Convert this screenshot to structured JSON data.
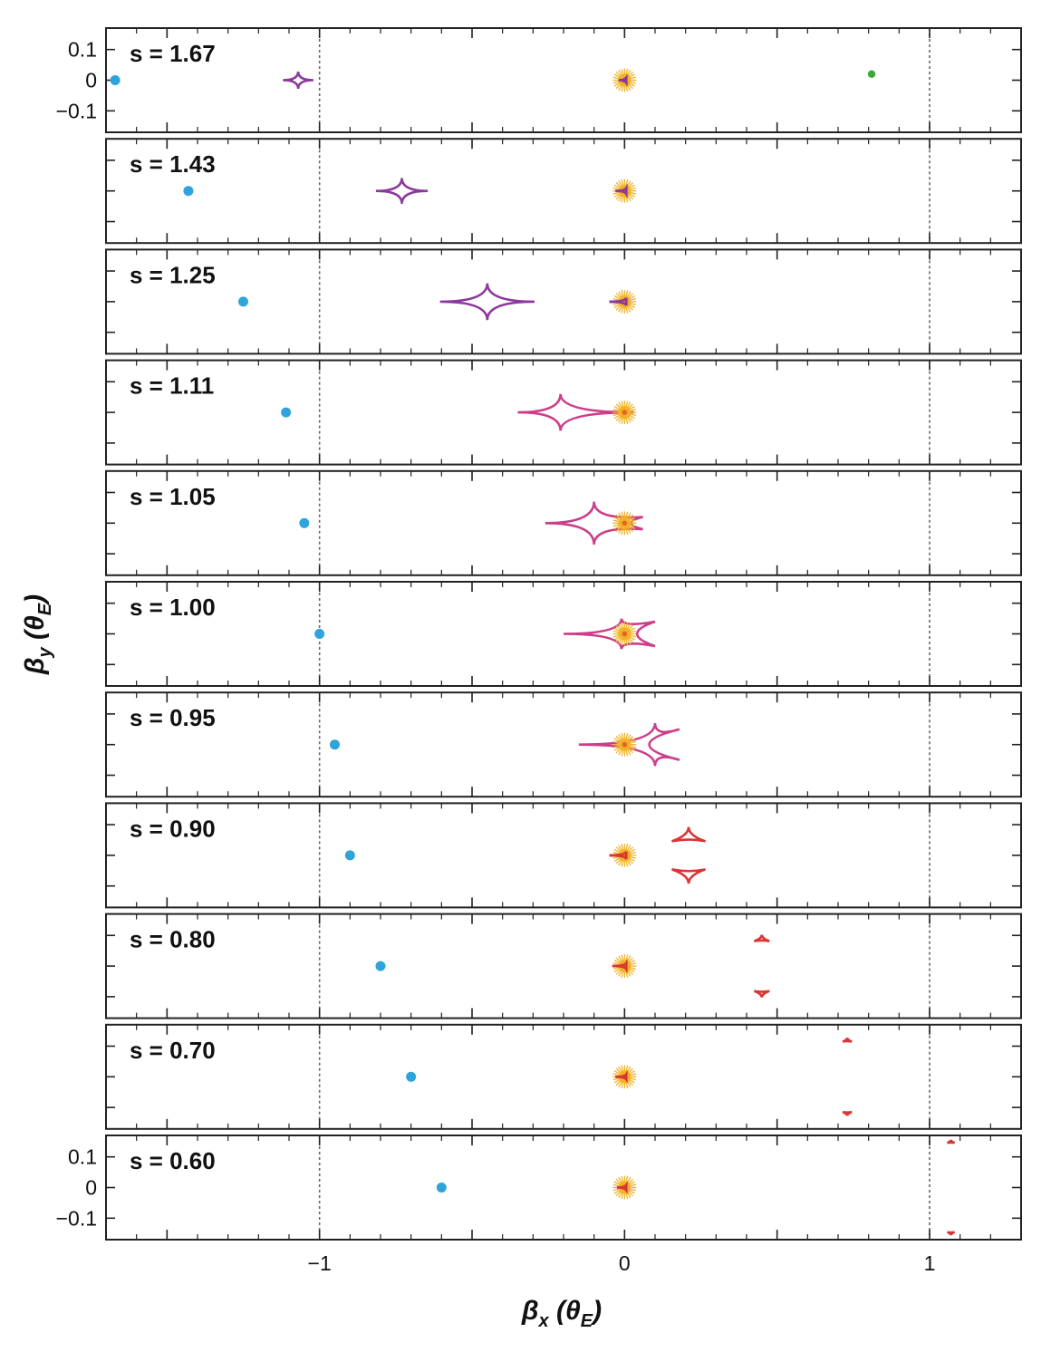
{
  "chart_data": {
    "type": "scatter",
    "xlabel": "βx (θE)",
    "ylabel": "βy (θE)",
    "xlabel_parts": {
      "symbol": "β",
      "sub": "x",
      "open": " (",
      "theta": "θ",
      "theta_sub": "E",
      "close": ")"
    },
    "ylabel_parts": {
      "symbol": "β",
      "sub": "y",
      "open": " (",
      "theta": "θ",
      "theta_sub": "E",
      "close": ")"
    },
    "xlim": [
      -1.7,
      1.3
    ],
    "ylim": [
      -0.17,
      0.17
    ],
    "xticks": [
      {
        "value": -1,
        "label": "−1"
      },
      {
        "value": 0,
        "label": "0"
      },
      {
        "value": 1,
        "label": "1"
      }
    ],
    "yticks": [
      {
        "value": 0.1,
        "label": "0.1"
      },
      {
        "value": 0,
        "label": "0"
      },
      {
        "value": -0.1,
        "label": "−0.1"
      }
    ],
    "reference_lines_x": [
      -1,
      1
    ],
    "colors": {
      "planet_close": "#8b3a9c",
      "planet_resonant": "#cc3d8a",
      "planet_wide": "#d93535",
      "source_dot": "#2ea3dc",
      "host_star": "#f0b326",
      "host_star_core": "#e8602c",
      "far_dot": "#3aa83a",
      "frame": "#222222",
      "refline": "#666666"
    },
    "panels": [
      {
        "label": "s = 1.67",
        "s": 1.67,
        "source_x": -1.67,
        "caustics": [
          {
            "kind": "central",
            "x": 0.0,
            "y": 0.0,
            "w": 0.02,
            "h": 0.008,
            "color": "#8b3a9c"
          },
          {
            "kind": "planetary",
            "x": -1.07,
            "y": 0.0,
            "w": 0.05,
            "h": 0.028,
            "color": "#8b3a9c"
          }
        ],
        "extra_dot": {
          "x": 0.81,
          "y": 0.02,
          "color": "#3aa83a"
        }
      },
      {
        "label": "s = 1.43",
        "s": 1.43,
        "source_x": -1.43,
        "caustics": [
          {
            "kind": "central",
            "x": 0.0,
            "y": 0.0,
            "w": 0.03,
            "h": 0.01,
            "color": "#8b3a9c"
          },
          {
            "kind": "planetary",
            "x": -0.73,
            "y": 0.0,
            "w": 0.085,
            "h": 0.042,
            "color": "#8b3a9c"
          }
        ]
      },
      {
        "label": "s = 1.25",
        "s": 1.25,
        "source_x": -1.25,
        "caustics": [
          {
            "kind": "central",
            "x": 0.0,
            "y": 0.0,
            "w": 0.05,
            "h": 0.012,
            "color": "#8b3a9c"
          },
          {
            "kind": "planetary",
            "x": -0.45,
            "y": 0.0,
            "w": 0.155,
            "h": 0.06,
            "color": "#8b3a9c"
          }
        ]
      },
      {
        "label": "s = 1.11",
        "s": 1.11,
        "source_x": -1.11,
        "caustics": [
          {
            "kind": "resonant",
            "xl": -0.35,
            "xtop": -0.21,
            "ytop": 0.06,
            "xr": 0.03,
            "tip_y": 0.0,
            "color": "#cc3d8a"
          }
        ]
      },
      {
        "label": "s = 1.05",
        "s": 1.05,
        "source_x": -1.05,
        "caustics": [
          {
            "kind": "resonant",
            "xl": -0.26,
            "xtop": -0.1,
            "ytop": 0.07,
            "xr": 0.06,
            "tip_y": 0.02,
            "color": "#cc3d8a"
          }
        ]
      },
      {
        "label": "s = 1.00",
        "s": 1.0,
        "source_x": -1.0,
        "caustics": [
          {
            "kind": "resonant",
            "xl": -0.2,
            "xtop": -0.01,
            "ytop": 0.05,
            "xr": 0.1,
            "tip_y": 0.04,
            "color": "#cc3d8a"
          }
        ]
      },
      {
        "label": "s = 0.95",
        "s": 0.95,
        "source_x": -0.95,
        "caustics": [
          {
            "kind": "resonant",
            "xl": -0.15,
            "xtop": 0.1,
            "ytop": 0.07,
            "xr": 0.18,
            "tip_y": 0.05,
            "color": "#cc3d8a"
          }
        ]
      },
      {
        "label": "s = 0.90",
        "s": 0.9,
        "source_x": -0.9,
        "caustics": [
          {
            "kind": "central",
            "x": 0.0,
            "y": 0.0,
            "w": 0.05,
            "h": 0.012,
            "color": "#d93535"
          },
          {
            "kind": "triangle",
            "x": 0.21,
            "y": 0.065,
            "size": 0.055,
            "dir": "down",
            "color": "#d93535"
          },
          {
            "kind": "triangle",
            "x": 0.21,
            "y": -0.065,
            "size": 0.055,
            "dir": "up",
            "color": "#d93535"
          }
        ]
      },
      {
        "label": "s = 0.80",
        "s": 0.8,
        "source_x": -0.8,
        "caustics": [
          {
            "kind": "central",
            "x": 0.0,
            "y": 0.0,
            "w": 0.04,
            "h": 0.01,
            "color": "#d93535"
          },
          {
            "kind": "triangle",
            "x": 0.45,
            "y": 0.09,
            "size": 0.025,
            "dir": "down",
            "color": "#d93535"
          },
          {
            "kind": "triangle",
            "x": 0.45,
            "y": -0.09,
            "size": 0.025,
            "dir": "up",
            "color": "#d93535"
          }
        ]
      },
      {
        "label": "s = 0.70",
        "s": 0.7,
        "source_x": -0.7,
        "caustics": [
          {
            "kind": "central",
            "x": 0.0,
            "y": 0.0,
            "w": 0.03,
            "h": 0.008,
            "color": "#d93535"
          },
          {
            "kind": "triangle",
            "x": 0.73,
            "y": 0.12,
            "size": 0.015,
            "dir": "down",
            "color": "#d93535"
          },
          {
            "kind": "triangle",
            "x": 0.73,
            "y": -0.12,
            "size": 0.015,
            "dir": "up",
            "color": "#d93535"
          }
        ]
      },
      {
        "label": "s = 0.60",
        "s": 0.6,
        "source_x": -0.6,
        "caustics": [
          {
            "kind": "central",
            "x": 0.0,
            "y": 0.0,
            "w": 0.025,
            "h": 0.006,
            "color": "#d93535"
          },
          {
            "kind": "triangle",
            "x": 1.07,
            "y": 0.15,
            "size": 0.012,
            "dir": "down",
            "color": "#d93535"
          },
          {
            "kind": "triangle",
            "x": 1.07,
            "y": -0.15,
            "size": 0.012,
            "dir": "up",
            "color": "#d93535"
          }
        ]
      }
    ]
  }
}
